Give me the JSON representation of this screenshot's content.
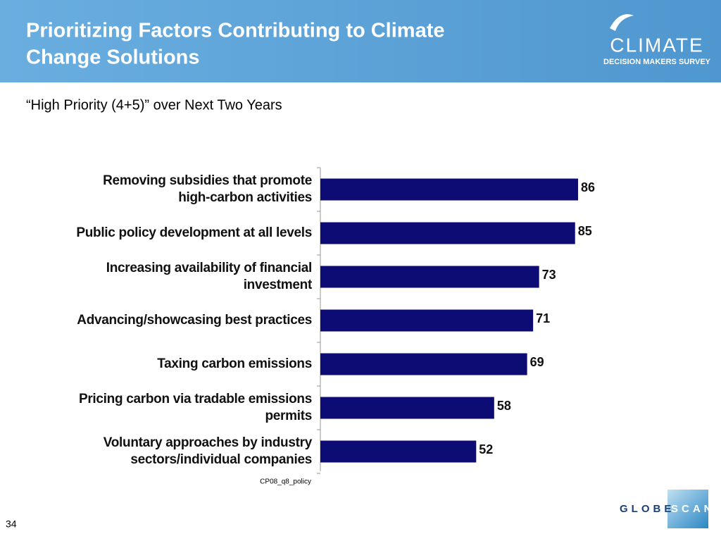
{
  "header": {
    "title": [
      "Prioritizing Factors Contributing to Climate",
      "Change Solutions"
    ],
    "logo": {
      "word": "CLIMATE",
      "tagline": "DECISION MAKERS SURVEY"
    }
  },
  "chart_data": {
    "type": "bar",
    "orientation": "horizontal",
    "subtitle": "“High Priority (4+5)” over Next Two Years",
    "categories": [
      [
        "Removing subsidies that promote",
        "high-carbon activities"
      ],
      [
        "Public policy development at all levels"
      ],
      [
        "Increasing availability of financial",
        "investment"
      ],
      [
        "Advancing/showcasing best practices"
      ],
      [
        "Taxing carbon emissions"
      ],
      [
        "Pricing carbon via tradable emissions",
        "permits"
      ],
      [
        "Voluntary approaches by industry",
        "sectors/individual companies"
      ]
    ],
    "values": [
      86,
      85,
      73,
      71,
      69,
      58,
      52
    ],
    "color": "#0d0c74",
    "source": "CP08_q8_policy"
  },
  "footer": {
    "page": "34",
    "brand": [
      "GLOBE",
      "SCAN"
    ]
  }
}
